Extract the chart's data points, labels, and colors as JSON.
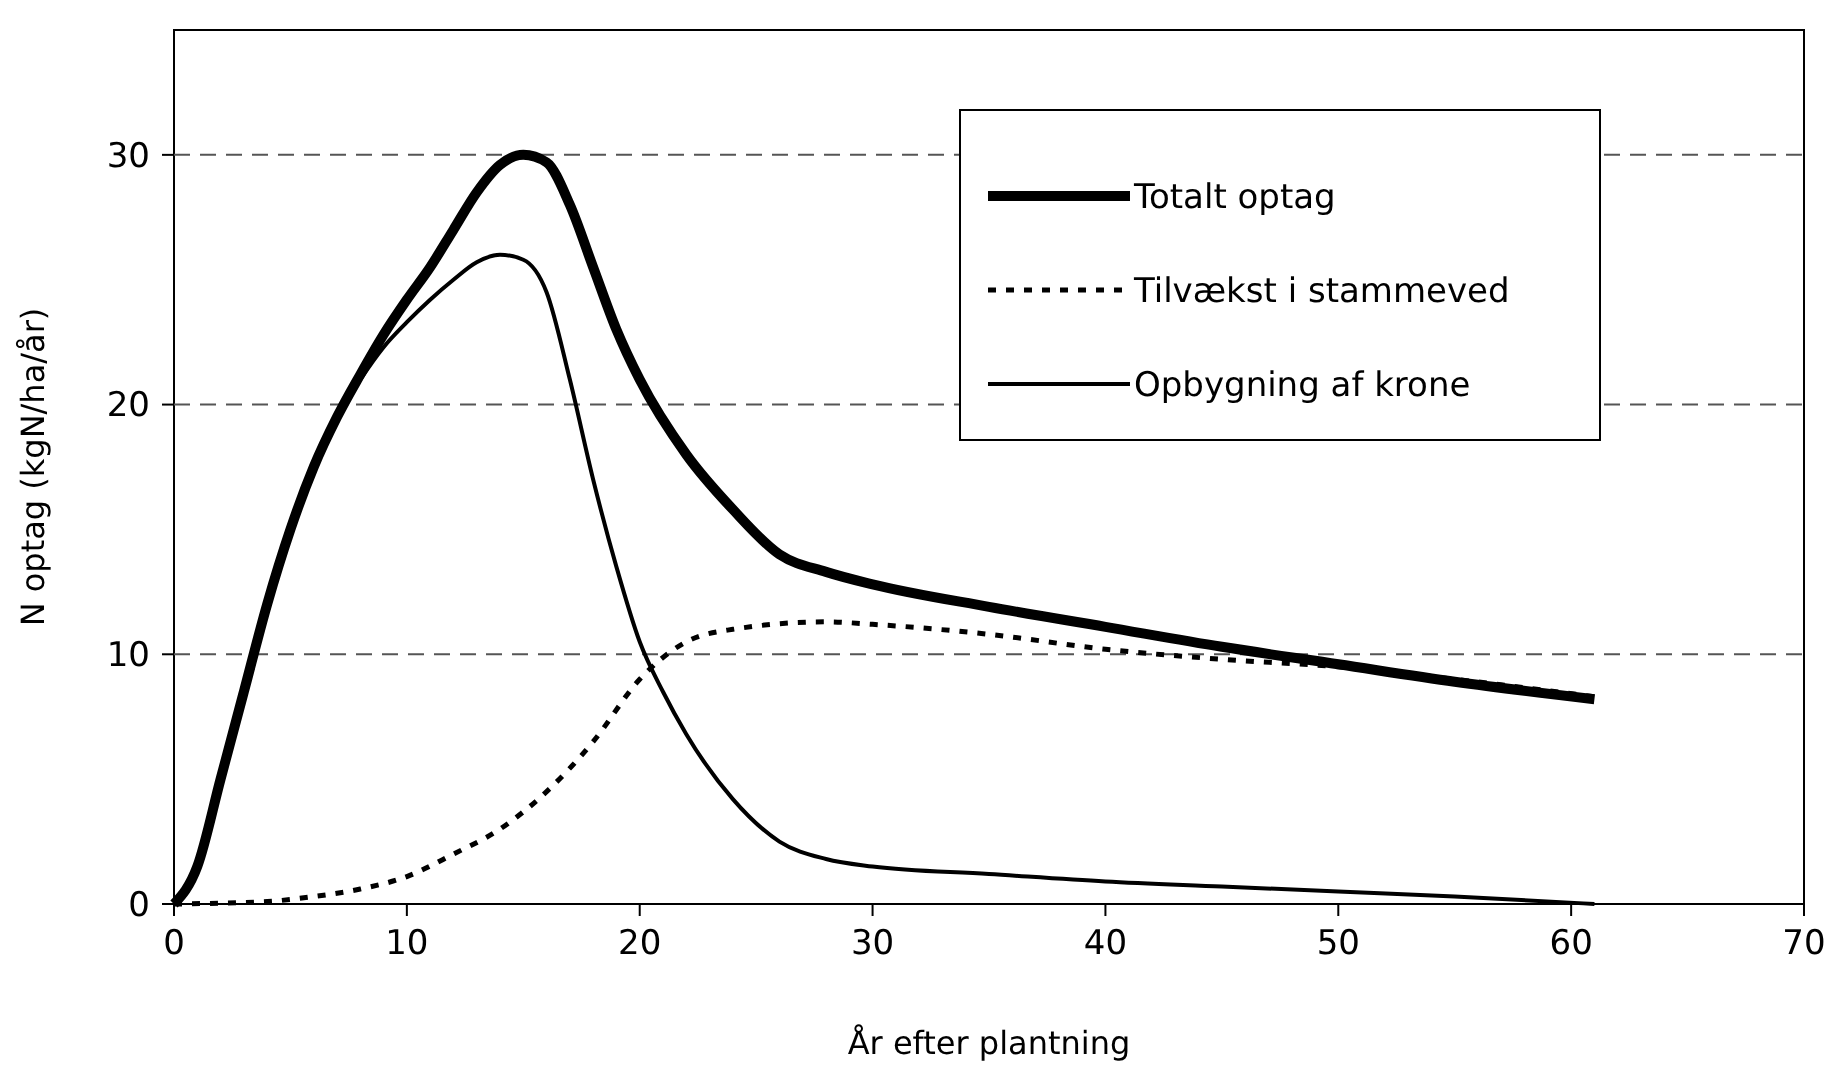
{
  "chart_data": {
    "type": "line",
    "xlabel": "År efter plantning",
    "ylabel": "N optag (kgN/ha/år)",
    "xlim": [
      0,
      70
    ],
    "xticks": [
      0,
      10,
      20,
      30,
      40,
      50,
      60,
      70
    ],
    "ylim": [
      0,
      35
    ],
    "yticks": [
      0,
      10,
      20,
      30
    ],
    "grid": "y",
    "legend": "top right",
    "marker": "none",
    "series": [
      {
        "name": "Totalt optag",
        "color": "#000000",
        "line_style": "solid",
        "x": [
          0,
          1,
          2,
          3,
          4,
          5,
          6,
          7,
          8,
          9,
          10,
          11,
          12,
          13,
          14,
          15,
          16,
          17,
          18,
          19,
          20,
          22,
          24,
          26,
          28,
          30,
          35,
          40,
          45,
          50,
          55,
          61
        ],
        "values": [
          0,
          1.5,
          5,
          8.5,
          12,
          15,
          17.5,
          19.5,
          21.2,
          22.8,
          24.2,
          25.5,
          27,
          28.5,
          29.6,
          30,
          29.7,
          28,
          25.5,
          23,
          21,
          18,
          15.8,
          14,
          13.3,
          12.8,
          11.9,
          11.1,
          10.3,
          9.6,
          8.9,
          8.2
        ]
      },
      {
        "name": "Tilvækst i stammeved",
        "color": "#000000",
        "line_style": "dotted",
        "x": [
          0,
          4,
          6,
          8,
          10,
          12,
          14,
          16,
          18,
          20,
          22,
          24,
          28,
          30,
          35,
          40,
          45,
          50,
          55,
          61
        ],
        "values": [
          0,
          0.1,
          0.3,
          0.6,
          1.1,
          2,
          3,
          4.5,
          6.5,
          9,
          10.5,
          11,
          11.3,
          11.2,
          10.8,
          10.2,
          9.8,
          9.5,
          9,
          8.3
        ]
      },
      {
        "name": "Opbygning af krone",
        "color": "#000000",
        "line_style": "solid",
        "x": [
          0,
          1,
          2,
          3,
          4,
          5,
          6,
          7,
          8,
          9,
          10,
          11,
          12,
          13,
          14,
          15,
          16,
          17,
          18,
          19,
          20,
          21,
          22,
          24,
          26,
          28,
          30,
          35,
          40,
          45,
          50,
          55,
          61
        ],
        "values": [
          0,
          1.5,
          5,
          8.5,
          12,
          15,
          17.5,
          19.5,
          21,
          22.3,
          23.3,
          24.2,
          25,
          25.7,
          26,
          25.8,
          24.5,
          21,
          17,
          13.5,
          10.5,
          8.5,
          6.8,
          4.2,
          2.5,
          1.8,
          1.5,
          1.2,
          0.9,
          0.7,
          0.5,
          0.3,
          0
        ]
      }
    ]
  }
}
